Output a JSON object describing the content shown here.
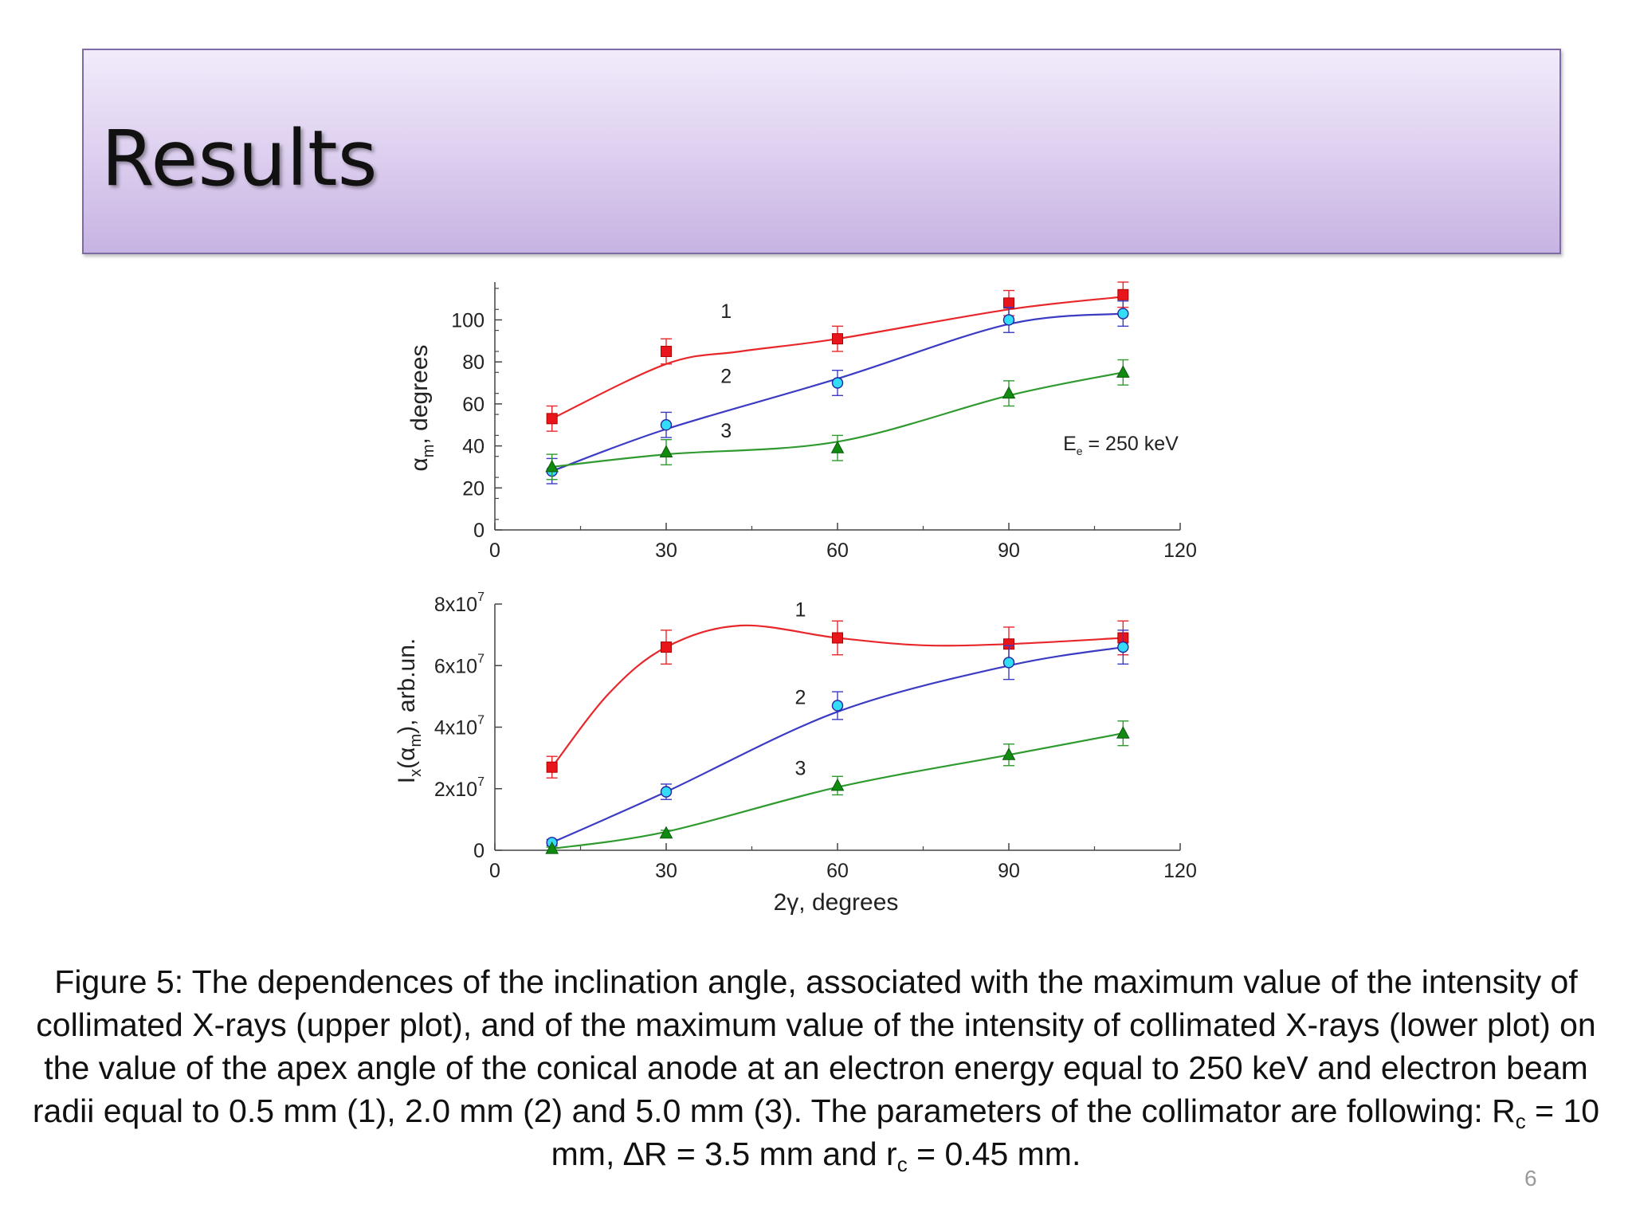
{
  "slide": {
    "title": "Results",
    "slide_number": "6"
  },
  "caption": {
    "text_1": "Figure 5: The dependences of the inclination angle, associated with the maximum value of the intensity of collimated X-rays (upper plot), and of the maximum value of the intensity of collimated X-rays (lower plot) on the value of the apex angle of the conical anode at an electron energy equal to 250 keV and electron beam radii equal to 0.5 mm (1), 2.0 mm (2) and 5.0 mm (3). The parameters of the collimator are following: R",
    "sub_1": "c",
    "text_2": " = 10 mm, ",
    "delta": "∆",
    "text_3": "R  = 3.5 mm and r",
    "sub_2": "c",
    "text_4": " = 0.45 mm."
  },
  "colors": {
    "series_1": "#e8272b",
    "series_2": "#3b3bc4",
    "series_3": "#2f9a2f",
    "marker_1": "#e8151b",
    "marker_2": "#33ddf5",
    "marker_3": "#118a11"
  },
  "chart_data": [
    {
      "type": "scatter",
      "name": "upper",
      "x_ticks": [
        "0",
        "30",
        "60",
        "90",
        "120"
      ],
      "y_ticks": [
        "0",
        "20",
        "40",
        "60",
        "80",
        "100"
      ],
      "xlim": [
        0,
        120
      ],
      "ylim": [
        0,
        118
      ],
      "ylabel_main": "α",
      "ylabel_sub": "m",
      "ylabel_rest": ", degrees",
      "annotation": {
        "main": "E",
        "sub": "e",
        "rest": " = 250 keV",
        "x": 99.5,
        "y": 38
      },
      "curve_labels": [
        {
          "text": "1",
          "x": 40.5,
          "y": 101
        },
        {
          "text": "2",
          "x": 40.5,
          "y": 70
        },
        {
          "text": "3",
          "x": 40.5,
          "y": 44
        }
      ],
      "series": [
        {
          "name": "1",
          "marker": "square",
          "x": [
            10,
            30,
            60,
            90,
            110
          ],
          "y": [
            53,
            85,
            91,
            108,
            112
          ],
          "err": [
            6,
            6,
            6,
            6,
            6
          ]
        },
        {
          "name": "2",
          "marker": "circle",
          "x": [
            10,
            30,
            60,
            90,
            110
          ],
          "y": [
            28,
            50,
            70,
            100,
            103
          ],
          "err": [
            6,
            6,
            6,
            6,
            6
          ]
        },
        {
          "name": "3",
          "marker": "triangle",
          "x": [
            10,
            30,
            60,
            90,
            110
          ],
          "y": [
            30,
            37,
            39,
            65,
            75
          ],
          "err": [
            6,
            6,
            6,
            6,
            6
          ]
        }
      ],
      "curves": [
        {
          "name": "1",
          "x": [
            10,
            30,
            43,
            60,
            90,
            110
          ],
          "y": [
            53,
            79,
            85,
            91,
            105,
            111
          ]
        },
        {
          "name": "2",
          "x": [
            10,
            30,
            60,
            90,
            110
          ],
          "y": [
            28,
            48,
            72,
            98,
            103
          ]
        },
        {
          "name": "3",
          "x": [
            10,
            30,
            60,
            90,
            110
          ],
          "y": [
            30,
            36,
            42,
            64,
            75
          ]
        }
      ]
    },
    {
      "type": "scatter",
      "name": "lower",
      "x_ticks": [
        "0",
        "30",
        "60",
        "90",
        "120"
      ],
      "y_ticks": [
        {
          "base": "0",
          "exp": "",
          "value": 0
        },
        {
          "base": "2x10",
          "exp": "7",
          "value": 20000000
        },
        {
          "base": "4x10",
          "exp": "7",
          "value": 40000000
        },
        {
          "base": "6x10",
          "exp": "7",
          "value": 60000000
        },
        {
          "base": "8x10",
          "exp": "7",
          "value": 80000000
        }
      ],
      "xlim": [
        0,
        120
      ],
      "ylim": [
        0,
        80000000
      ],
      "xlabel_main": "2γ, degrees",
      "ylabel_parts": [
        "I",
        "x",
        "(α",
        "m",
        "), arb.un."
      ],
      "curve_labels": [
        {
          "text": "1",
          "x": 53.5,
          "y": 76000000
        },
        {
          "text": "2",
          "x": 53.5,
          "y": 47500000
        },
        {
          "text": "3",
          "x": 53.5,
          "y": 24500000
        }
      ],
      "series": [
        {
          "name": "1",
          "marker": "square",
          "x": [
            10,
            30,
            60,
            90,
            110
          ],
          "y": [
            27000000,
            66000000,
            69000000,
            67000000,
            69000000
          ],
          "err": [
            3500000,
            5500000,
            5500000,
            5500000,
            5500000
          ]
        },
        {
          "name": "2",
          "marker": "circle",
          "x": [
            10,
            30,
            60,
            90,
            110
          ],
          "y": [
            2500000,
            19000000,
            47000000,
            61000000,
            66000000
          ],
          "err": [
            1000000,
            2500000,
            4500000,
            5500000,
            5500000
          ]
        },
        {
          "name": "3",
          "marker": "triangle",
          "x": [
            10,
            30,
            60,
            90,
            110
          ],
          "y": [
            500000,
            5500000,
            21000000,
            31000000,
            38000000
          ],
          "err": [
            500000,
            1000000,
            3000000,
            3500000,
            4000000
          ]
        }
      ],
      "curves": [
        {
          "name": "1",
          "x": [
            10,
            20,
            30,
            43,
            60,
            75,
            90,
            110
          ],
          "y": [
            27000000,
            51000000,
            66000000,
            73000000,
            69000000,
            66600000,
            67000000,
            69000000
          ]
        },
        {
          "name": "2",
          "x": [
            10,
            30,
            60,
            90,
            110
          ],
          "y": [
            2500000,
            19000000,
            45000000,
            60000000,
            66000000
          ]
        },
        {
          "name": "3",
          "x": [
            10,
            30,
            60,
            90,
            110
          ],
          "y": [
            500000,
            6000000,
            20500000,
            31000000,
            38000000
          ]
        }
      ]
    }
  ]
}
